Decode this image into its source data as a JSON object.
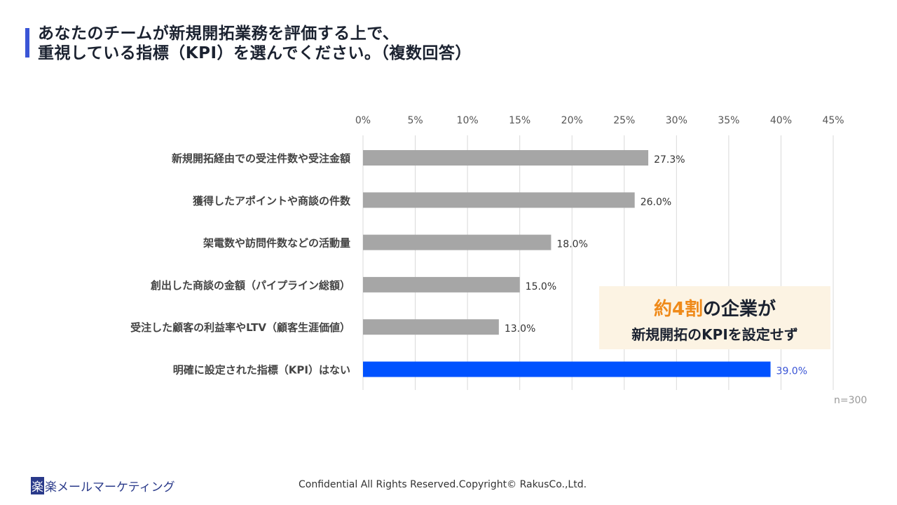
{
  "title_lines": [
    "あなたのチームが新規開拓業務を評価する上で、",
    "重視している指標（KPI）を選んでください。（複数回答）"
  ],
  "chart_data": {
    "type": "bar",
    "orientation": "horizontal",
    "categories": [
      "新規開拓経由での受注件数や受注金額",
      "獲得したアポイントや商談の件数",
      "架電数や訪問件数などの活動量",
      "創出した商談の金額（パイプライン総額）",
      "受注した顧客の利益率やLTV（顧客生涯価値）",
      "明確に設定された指標（KPI）はない"
    ],
    "values": [
      27.3,
      26.0,
      18.0,
      15.0,
      13.0,
      39.0
    ],
    "data_labels": [
      "27.3%",
      "26.0%",
      "18.0%",
      "15.0%",
      "13.0%",
      "39.0%"
    ],
    "xlim": [
      0,
      45
    ],
    "xticks": [
      "0%",
      "5%",
      "10%",
      "15%",
      "20%",
      "25%",
      "30%",
      "35%",
      "40%",
      "45%"
    ],
    "grid": true,
    "colors": {
      "default": "#a6a6a6",
      "highlight": "#0052ff",
      "highlight_label": "#3a55d6"
    },
    "highlight_index": 5
  },
  "callout": {
    "highlight": "約4割",
    "line1_rest": "の企業が",
    "line2": "新規開拓のKPIを設定せず"
  },
  "sample_size": "n=300",
  "footer": {
    "logo_mark": "楽",
    "logo_text": "楽メールマーケティング",
    "copyright": "Confidential All Rights Reserved.Copyright© RakusCo.,Ltd."
  }
}
